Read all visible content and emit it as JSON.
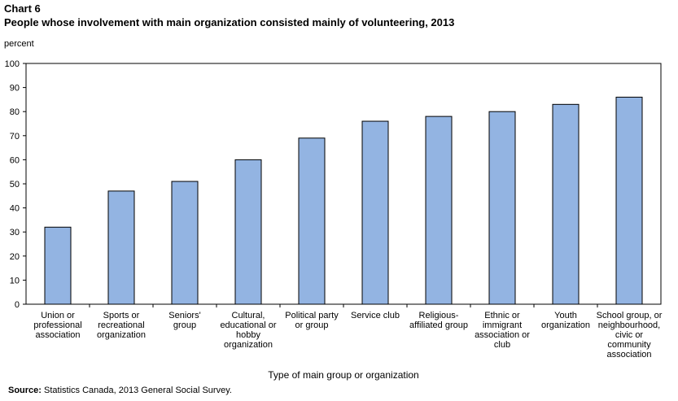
{
  "header": {
    "label": "Chart 6",
    "title": "People whose involvement with main organization consisted mainly of volunteering, 2013"
  },
  "footer": {
    "source_label": "Source:",
    "source_text": " Statistics Canada, 2013 General Social Survey."
  },
  "colors": {
    "bar_fill": "#93b4e2",
    "bar_stroke": "#000000"
  },
  "chart_data": {
    "type": "bar",
    "title": "People whose involvement with main organization consisted mainly of volunteering, 2013",
    "ylabel": "percent",
    "xlabel": "Type of main group or organization",
    "ylim": [
      0,
      100
    ],
    "yticks": [
      0,
      10,
      20,
      30,
      40,
      50,
      60,
      70,
      80,
      90,
      100
    ],
    "grid": false,
    "categories": [
      [
        "Union or",
        "professional",
        "association"
      ],
      [
        "Sports or",
        "recreational",
        "organization"
      ],
      [
        "Seniors'",
        "group"
      ],
      [
        "Cultural,",
        "educational or",
        "hobby",
        "organization"
      ],
      [
        "Political party",
        "or group"
      ],
      [
        "Service club"
      ],
      [
        "Religious-",
        "affiliated group"
      ],
      [
        "Ethnic or",
        "immigrant",
        "association or",
        "club"
      ],
      [
        "Youth",
        "organization"
      ],
      [
        "School group, or",
        "neighbourhood,",
        "civic or",
        "community",
        "association"
      ]
    ],
    "values": [
      32,
      47,
      51,
      60,
      69,
      76,
      78,
      80,
      83,
      86
    ]
  }
}
